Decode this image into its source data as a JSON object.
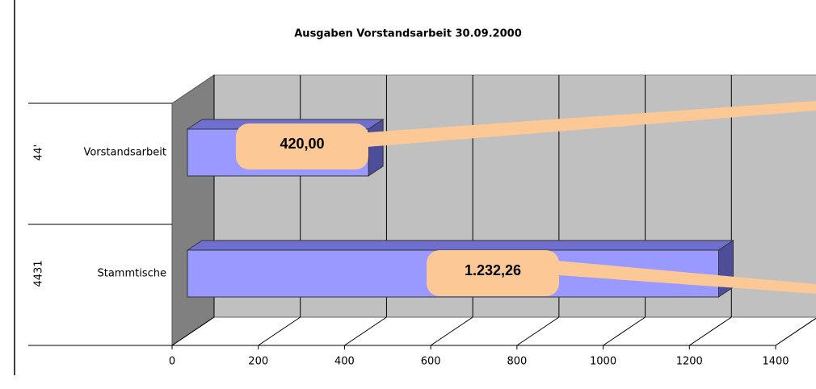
{
  "chart_data": {
    "type": "bar3d",
    "title": "Ausgaben Vorstandsarbeit 30.09.2000",
    "groups": [
      "4431",
      "44'"
    ],
    "categories": [
      "Stammtische",
      "Vorstandsarbeit"
    ],
    "values": [
      1232.26,
      420
    ],
    "value_labels": [
      "1.232,26",
      "420,00"
    ],
    "color": "#9999ff",
    "xlim": [
      0,
      1400
    ],
    "xticks": [
      0,
      200,
      400,
      600,
      800,
      1000,
      1200,
      1400
    ],
    "grid": true
  }
}
